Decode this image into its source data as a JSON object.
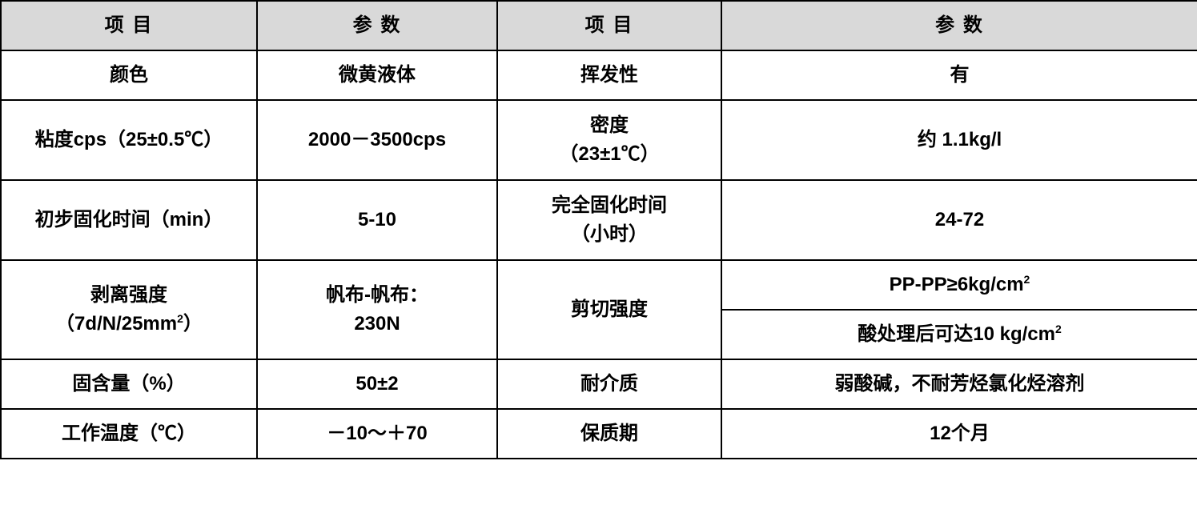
{
  "table": {
    "header_bg_color": "#d9d9d9",
    "border_color": "#000000",
    "text_color": "#000000",
    "background_color": "#ffffff",
    "font_size": 24,
    "font_weight": "bold",
    "columns": {
      "col1_header": "项 目",
      "col2_header": "参 数",
      "col3_header": "项 目",
      "col4_header": "参 数",
      "col1_width": 320,
      "col2_width": 300,
      "col3_width": 280,
      "col4_width": 595
    },
    "rows": [
      {
        "item1": "颜色",
        "param1": "微黄液体",
        "item2": "挥发性",
        "param2": "有"
      },
      {
        "item1": "粘度cps（25±0.5℃）",
        "param1": "2000－3500cps",
        "item2_line1": "密度",
        "item2_line2": "（23±1℃）",
        "param2": "约 1.1kg/l"
      },
      {
        "item1": "初步固化时间（min）",
        "param1": "5-10",
        "item2_line1": "完全固化时间",
        "item2_line2": "（小时）",
        "param2": "24-72"
      },
      {
        "item1_line1": "剥离强度",
        "item1_line2_prefix": "（7d/N/25mm",
        "item1_line2_sup": "2",
        "item1_line2_suffix": "）",
        "param1_line1": "帆布-帆布：",
        "param1_line2": "230N",
        "item2": "剪切强度",
        "param2a_prefix": "PP-PP≥6kg/cm",
        "param2a_sup": "2",
        "param2b_prefix": "酸处理后可达10 kg/cm",
        "param2b_sup": "2"
      },
      {
        "item1": "固含量（%）",
        "param1": "50±2",
        "item2": "耐介质",
        "param2": "弱酸碱，不耐芳烃氯化烃溶剂"
      },
      {
        "item1": "工作温度（℃）",
        "param1": "－10～＋70",
        "item2": "保质期",
        "param2": "12个月"
      }
    ]
  }
}
